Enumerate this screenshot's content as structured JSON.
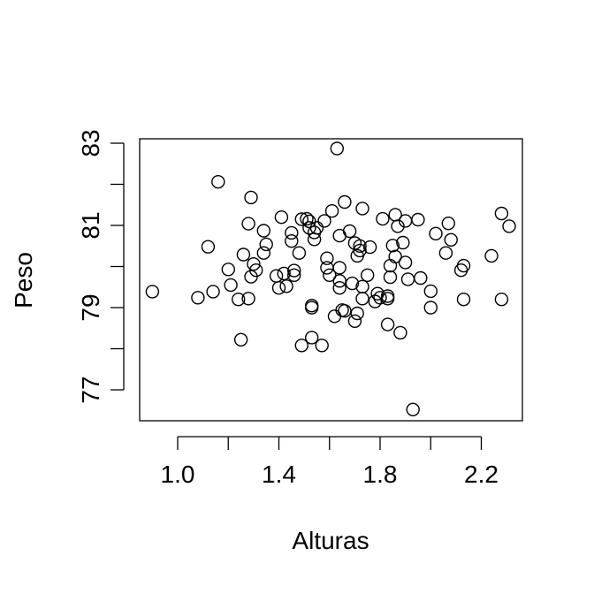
{
  "chart_data": {
    "type": "scatter",
    "xlabel": "Alturas",
    "ylabel": "Peso",
    "x_ticks": [
      1.0,
      1.2,
      1.4,
      1.6,
      1.8,
      2.0,
      2.2
    ],
    "x_tick_labels": [
      "1.0",
      "",
      "1.4",
      "",
      "1.8",
      "",
      "2.2"
    ],
    "y_ticks": [
      77,
      78,
      79,
      80,
      81,
      82,
      83
    ],
    "y_tick_labels": [
      "77",
      "",
      "79",
      "",
      "81",
      "",
      "83"
    ],
    "xlim": [
      0.85,
      2.35
    ],
    "ylim": [
      76.3,
      83.1
    ],
    "grid": false,
    "marker": "open-circle",
    "points": [
      {
        "x": 0.9,
        "y": 79.39
      },
      {
        "x": 1.08,
        "y": 79.24
      },
      {
        "x": 1.12,
        "y": 80.48
      },
      {
        "x": 1.14,
        "y": 79.39
      },
      {
        "x": 1.16,
        "y": 82.06
      },
      {
        "x": 1.2,
        "y": 79.93
      },
      {
        "x": 1.21,
        "y": 79.55
      },
      {
        "x": 1.24,
        "y": 79.2
      },
      {
        "x": 1.25,
        "y": 78.22
      },
      {
        "x": 1.26,
        "y": 80.29
      },
      {
        "x": 1.28,
        "y": 79.22
      },
      {
        "x": 1.28,
        "y": 81.04
      },
      {
        "x": 1.29,
        "y": 81.68
      },
      {
        "x": 1.29,
        "y": 79.75
      },
      {
        "x": 1.3,
        "y": 80.06
      },
      {
        "x": 1.31,
        "y": 79.91
      },
      {
        "x": 1.34,
        "y": 80.87
      },
      {
        "x": 1.34,
        "y": 80.33
      },
      {
        "x": 1.35,
        "y": 80.54
      },
      {
        "x": 1.39,
        "y": 79.77
      },
      {
        "x": 1.4,
        "y": 79.48
      },
      {
        "x": 1.41,
        "y": 81.2
      },
      {
        "x": 1.42,
        "y": 79.83
      },
      {
        "x": 1.43,
        "y": 79.52
      },
      {
        "x": 1.45,
        "y": 80.82
      },
      {
        "x": 1.45,
        "y": 80.62
      },
      {
        "x": 1.46,
        "y": 79.9
      },
      {
        "x": 1.46,
        "y": 79.79
      },
      {
        "x": 1.48,
        "y": 80.33
      },
      {
        "x": 1.49,
        "y": 81.15
      },
      {
        "x": 1.49,
        "y": 78.08
      },
      {
        "x": 1.51,
        "y": 81.16
      },
      {
        "x": 1.52,
        "y": 81.1
      },
      {
        "x": 1.52,
        "y": 80.94
      },
      {
        "x": 1.53,
        "y": 78.27
      },
      {
        "x": 1.53,
        "y": 79.05
      },
      {
        "x": 1.53,
        "y": 79.0
      },
      {
        "x": 1.54,
        "y": 80.66
      },
      {
        "x": 1.54,
        "y": 80.83
      },
      {
        "x": 1.55,
        "y": 80.94
      },
      {
        "x": 1.57,
        "y": 78.08
      },
      {
        "x": 1.58,
        "y": 81.11
      },
      {
        "x": 1.59,
        "y": 80.2
      },
      {
        "x": 1.59,
        "y": 79.97
      },
      {
        "x": 1.6,
        "y": 79.79
      },
      {
        "x": 1.61,
        "y": 81.35
      },
      {
        "x": 1.62,
        "y": 78.79
      },
      {
        "x": 1.63,
        "y": 82.87
      },
      {
        "x": 1.64,
        "y": 80.75
      },
      {
        "x": 1.64,
        "y": 79.97
      },
      {
        "x": 1.64,
        "y": 79.65
      },
      {
        "x": 1.64,
        "y": 79.48
      },
      {
        "x": 1.65,
        "y": 78.94
      },
      {
        "x": 1.66,
        "y": 81.57
      },
      {
        "x": 1.66,
        "y": 78.92
      },
      {
        "x": 1.68,
        "y": 80.86
      },
      {
        "x": 1.69,
        "y": 79.59
      },
      {
        "x": 1.7,
        "y": 80.57
      },
      {
        "x": 1.7,
        "y": 78.67
      },
      {
        "x": 1.71,
        "y": 80.26
      },
      {
        "x": 1.71,
        "y": 78.86
      },
      {
        "x": 1.72,
        "y": 80.5
      },
      {
        "x": 1.72,
        "y": 80.39
      },
      {
        "x": 1.73,
        "y": 79.51
      },
      {
        "x": 1.73,
        "y": 81.41
      },
      {
        "x": 1.73,
        "y": 79.22
      },
      {
        "x": 1.75,
        "y": 79.79
      },
      {
        "x": 1.76,
        "y": 80.47
      },
      {
        "x": 1.78,
        "y": 79.15
      },
      {
        "x": 1.79,
        "y": 79.34
      },
      {
        "x": 1.8,
        "y": 79.24
      },
      {
        "x": 1.81,
        "y": 81.16
      },
      {
        "x": 1.83,
        "y": 79.28
      },
      {
        "x": 1.83,
        "y": 79.22
      },
      {
        "x": 1.83,
        "y": 78.59
      },
      {
        "x": 1.84,
        "y": 79.74
      },
      {
        "x": 1.84,
        "y": 80.02
      },
      {
        "x": 1.85,
        "y": 80.51
      },
      {
        "x": 1.86,
        "y": 80.24
      },
      {
        "x": 1.86,
        "y": 81.26
      },
      {
        "x": 1.87,
        "y": 80.98
      },
      {
        "x": 1.88,
        "y": 78.39
      },
      {
        "x": 1.89,
        "y": 80.58
      },
      {
        "x": 1.9,
        "y": 81.11
      },
      {
        "x": 1.9,
        "y": 80.1
      },
      {
        "x": 1.91,
        "y": 79.69
      },
      {
        "x": 1.93,
        "y": 76.52
      },
      {
        "x": 1.95,
        "y": 81.14
      },
      {
        "x": 1.96,
        "y": 79.72
      },
      {
        "x": 2.0,
        "y": 79.4
      },
      {
        "x": 2.0,
        "y": 79.0
      },
      {
        "x": 2.02,
        "y": 80.8
      },
      {
        "x": 2.06,
        "y": 80.33
      },
      {
        "x": 2.07,
        "y": 81.05
      },
      {
        "x": 2.08,
        "y": 80.65
      },
      {
        "x": 2.12,
        "y": 79.91
      },
      {
        "x": 2.13,
        "y": 80.02
      },
      {
        "x": 2.13,
        "y": 79.2
      },
      {
        "x": 2.24,
        "y": 80.26
      },
      {
        "x": 2.28,
        "y": 81.29
      },
      {
        "x": 2.28,
        "y": 79.2
      },
      {
        "x": 2.31,
        "y": 80.98
      }
    ]
  }
}
